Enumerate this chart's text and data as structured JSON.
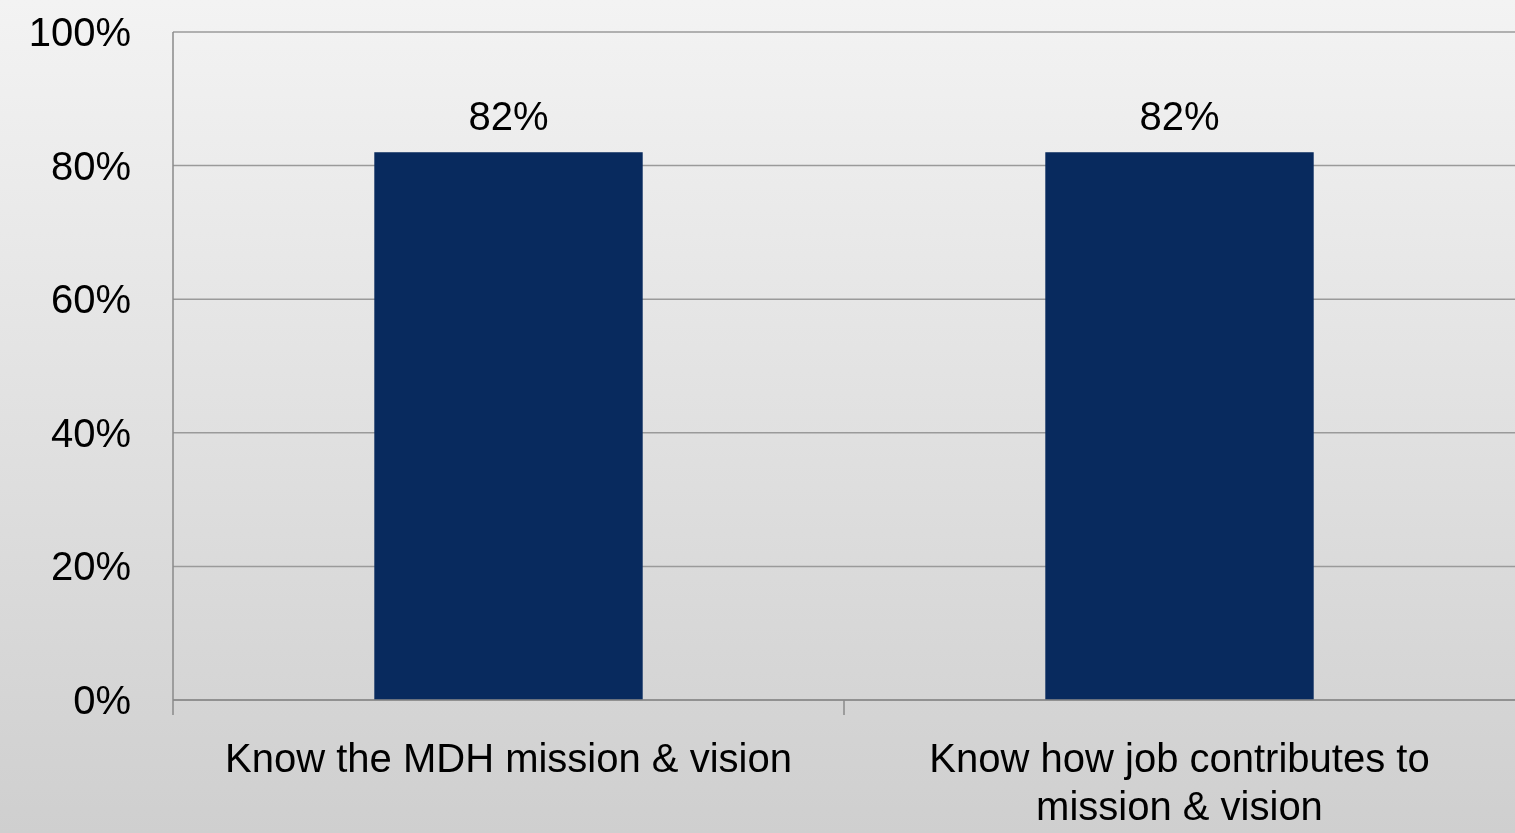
{
  "chart_data": {
    "type": "bar",
    "categories": [
      "Know the MDH mission & vision",
      "Know how job contributes to mission & vision"
    ],
    "values": [
      82,
      82
    ],
    "color": "#082a5e",
    "ylim": [
      0,
      100
    ],
    "yticks": [
      {
        "value": 0,
        "label": "0%"
      },
      {
        "value": 20,
        "label": "20%"
      },
      {
        "value": 40,
        "label": "40%"
      },
      {
        "value": 60,
        "label": "60%"
      },
      {
        "value": 80,
        "label": "80%"
      },
      {
        "value": 100,
        "label": "100%"
      }
    ],
    "grid": "y",
    "value_labels": [
      "82%",
      "82%"
    ]
  }
}
